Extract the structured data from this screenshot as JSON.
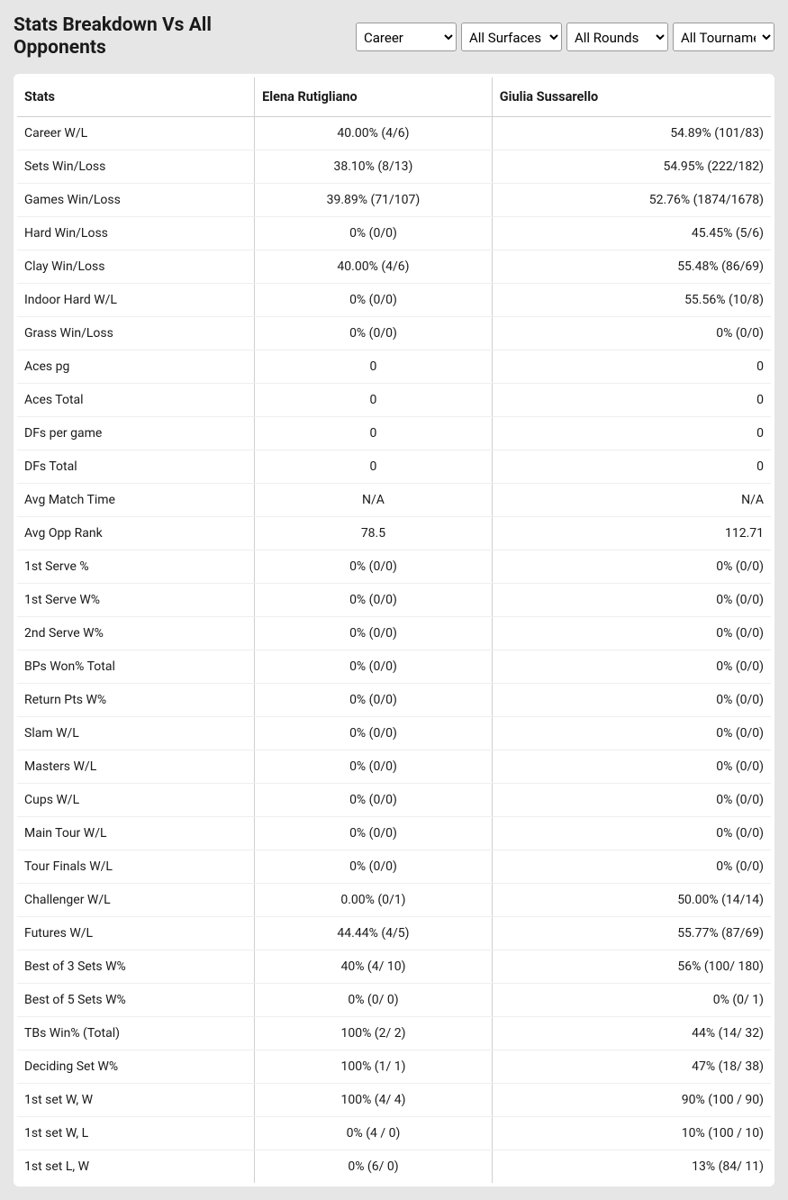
{
  "header": {
    "title": "Stats Breakdown Vs All Opponents",
    "filters": {
      "career": "Career",
      "surface": "All Surfaces",
      "round": "All Rounds",
      "tournament": "All Tournaments"
    }
  },
  "table": {
    "columns": [
      "Stats",
      "Elena Rutigliano",
      "Giulia Sussarello"
    ],
    "rows": [
      [
        "Career W/L",
        "40.00% (4/6)",
        "54.89% (101/83)"
      ],
      [
        "Sets Win/Loss",
        "38.10% (8/13)",
        "54.95% (222/182)"
      ],
      [
        "Games Win/Loss",
        "39.89% (71/107)",
        "52.76% (1874/1678)"
      ],
      [
        "Hard Win/Loss",
        "0% (0/0)",
        "45.45% (5/6)"
      ],
      [
        "Clay Win/Loss",
        "40.00% (4/6)",
        "55.48% (86/69)"
      ],
      [
        "Indoor Hard W/L",
        "0% (0/0)",
        "55.56% (10/8)"
      ],
      [
        "Grass Win/Loss",
        "0% (0/0)",
        "0% (0/0)"
      ],
      [
        "Aces pg",
        "0",
        "0"
      ],
      [
        "Aces Total",
        "0",
        "0"
      ],
      [
        "DFs per game",
        "0",
        "0"
      ],
      [
        "DFs Total",
        "0",
        "0"
      ],
      [
        "Avg Match Time",
        "N/A",
        "N/A"
      ],
      [
        "Avg Opp Rank",
        "78.5",
        "112.71"
      ],
      [
        "1st Serve %",
        "0% (0/0)",
        "0% (0/0)"
      ],
      [
        "1st Serve W%",
        "0% (0/0)",
        "0% (0/0)"
      ],
      [
        "2nd Serve W%",
        "0% (0/0)",
        "0% (0/0)"
      ],
      [
        "BPs Won% Total",
        "0% (0/0)",
        "0% (0/0)"
      ],
      [
        "Return Pts W%",
        "0% (0/0)",
        "0% (0/0)"
      ],
      [
        "Slam W/L",
        "0% (0/0)",
        "0% (0/0)"
      ],
      [
        "Masters W/L",
        "0% (0/0)",
        "0% (0/0)"
      ],
      [
        "Cups W/L",
        "0% (0/0)",
        "0% (0/0)"
      ],
      [
        "Main Tour W/L",
        "0% (0/0)",
        "0% (0/0)"
      ],
      [
        "Tour Finals W/L",
        "0% (0/0)",
        "0% (0/0)"
      ],
      [
        "Challenger W/L",
        "0.00% (0/1)",
        "50.00% (14/14)"
      ],
      [
        "Futures W/L",
        "44.44% (4/5)",
        "55.77% (87/69)"
      ],
      [
        "Best of 3 Sets W%",
        "40% (4/ 10)",
        "56% (100/ 180)"
      ],
      [
        "Best of 5 Sets W%",
        "0% (0/ 0)",
        "0% (0/ 1)"
      ],
      [
        "TBs Win% (Total)",
        "100% (2/ 2)",
        "44% (14/ 32)"
      ],
      [
        "Deciding Set W%",
        "100% (1/ 1)",
        "47% (18/ 38)"
      ],
      [
        "1st set W, W",
        "100% (4/ 4)",
        "90% (100 / 90)"
      ],
      [
        "1st set W, L",
        "0% (4 / 0)",
        "10% (100 / 10)"
      ],
      [
        "1st set L, W",
        "0% (6/ 0)",
        "13% (84/ 11)"
      ]
    ]
  },
  "colors": {
    "page_background": "#e6e6e6",
    "table_background": "#ffffff",
    "border_header": "#d0d0d0",
    "border_row": "#eeeeee",
    "text": "#1a1a1a"
  }
}
